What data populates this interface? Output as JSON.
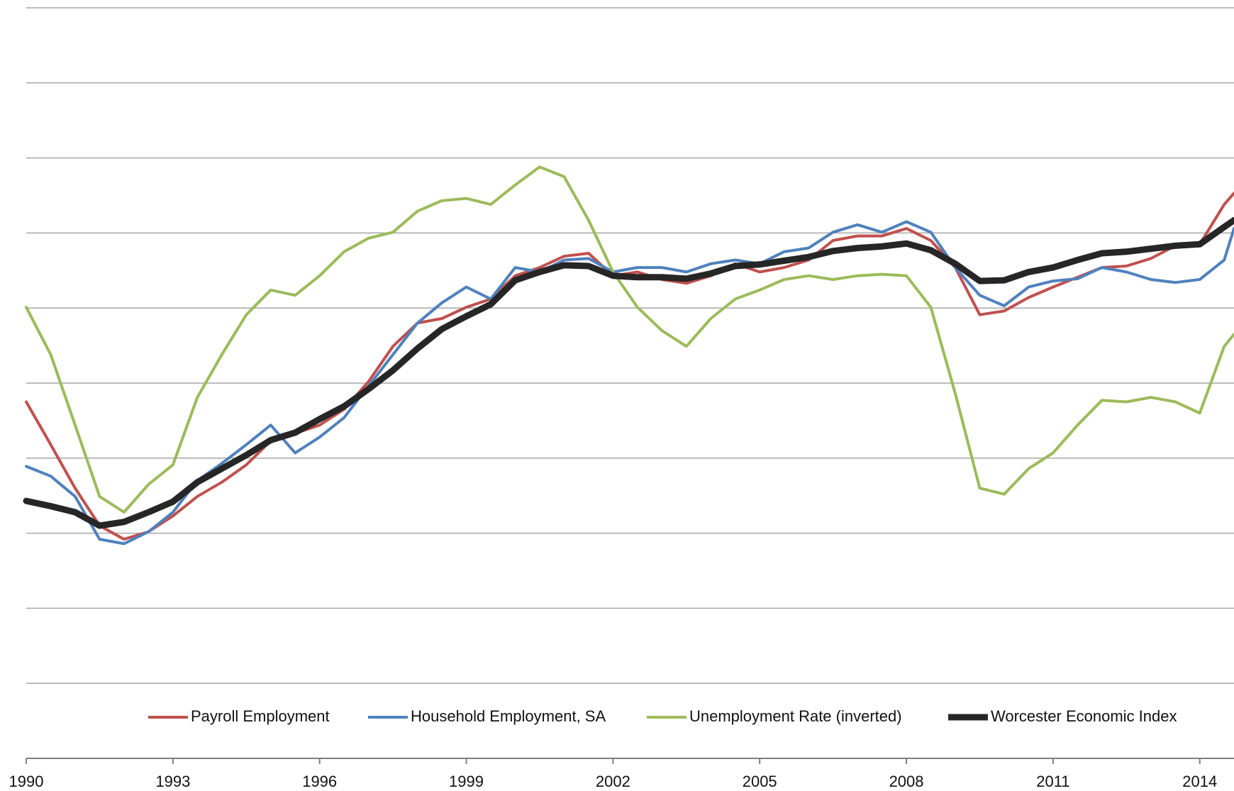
{
  "chart_data": {
    "type": "line",
    "x": [
      1990,
      1990.5,
      1991,
      1991.5,
      1992,
      1992.5,
      1993,
      1993.5,
      1994,
      1994.5,
      1995,
      1995.5,
      1996,
      1996.5,
      1997,
      1997.5,
      1998,
      1998.5,
      1999,
      1999.5,
      2000,
      2000.5,
      2001,
      2001.5,
      2002,
      2002.5,
      2003,
      2003.5,
      2004,
      2004.5,
      2005,
      2005.5,
      2006,
      2006.5,
      2007,
      2007.5,
      2008,
      2008.5,
      2009,
      2009.5,
      2010,
      2010.5,
      2011,
      2011.5,
      2012,
      2012.5,
      2013,
      2013.5,
      2014,
      2014.5,
      2014.7
    ],
    "series": [
      {
        "name": "Payroll Employment",
        "color": "#c0504d",
        "width": 4,
        "values": [
          4.75,
          4.18,
          3.6,
          3.1,
          2.92,
          3.02,
          3.23,
          3.49,
          3.68,
          3.91,
          4.23,
          4.33,
          4.44,
          4.65,
          5.02,
          5.49,
          5.8,
          5.86,
          6.01,
          6.12,
          6.43,
          6.54,
          6.69,
          6.73,
          6.43,
          6.48,
          6.38,
          6.33,
          6.43,
          6.59,
          6.48,
          6.54,
          6.64,
          6.9,
          6.96,
          6.96,
          7.06,
          6.9,
          6.54,
          5.91,
          5.96,
          6.14,
          6.28,
          6.41,
          6.54,
          6.56,
          6.66,
          6.83,
          6.85,
          7.38,
          7.53
        ]
      },
      {
        "name": "Household Employment, SA",
        "color": "#4f81bd",
        "width": 4,
        "values": [
          3.89,
          3.76,
          3.49,
          2.92,
          2.86,
          3.02,
          3.28,
          3.7,
          3.93,
          4.18,
          4.44,
          4.07,
          4.28,
          4.54,
          4.96,
          5.38,
          5.8,
          6.07,
          6.28,
          6.12,
          6.54,
          6.48,
          6.64,
          6.66,
          6.48,
          6.54,
          6.54,
          6.48,
          6.59,
          6.64,
          6.59,
          6.75,
          6.8,
          7.01,
          7.11,
          7.01,
          7.15,
          7.01,
          6.54,
          6.17,
          6.03,
          6.28,
          6.36,
          6.39,
          6.54,
          6.48,
          6.38,
          6.34,
          6.38,
          6.64,
          7.06
        ]
      },
      {
        "name": "Unemployment Rate (inverted)",
        "color": "#9bbb59",
        "width": 4,
        "values": [
          6.01,
          5.38,
          4.44,
          3.49,
          3.28,
          3.65,
          3.91,
          4.81,
          5.38,
          5.91,
          6.24,
          6.17,
          6.43,
          6.75,
          6.93,
          7.01,
          7.29,
          7.43,
          7.46,
          7.38,
          7.64,
          7.88,
          7.75,
          7.17,
          6.48,
          6.01,
          5.7,
          5.49,
          5.86,
          6.12,
          6.24,
          6.38,
          6.43,
          6.38,
          6.43,
          6.45,
          6.43,
          6.01,
          4.86,
          3.6,
          3.52,
          3.86,
          4.07,
          4.44,
          4.77,
          4.75,
          4.81,
          4.75,
          4.6,
          5.49,
          5.65
        ]
      },
      {
        "name": "Worcester Economic Index",
        "color": "#262626",
        "width": 9,
        "values": [
          3.43,
          3.36,
          3.28,
          3.1,
          3.15,
          3.28,
          3.42,
          3.68,
          3.86,
          4.04,
          4.24,
          4.34,
          4.52,
          4.69,
          4.92,
          5.17,
          5.46,
          5.72,
          5.89,
          6.05,
          6.37,
          6.48,
          6.57,
          6.56,
          6.43,
          6.41,
          6.41,
          6.39,
          6.46,
          6.56,
          6.58,
          6.63,
          6.68,
          6.76,
          6.8,
          6.82,
          6.86,
          6.77,
          6.59,
          6.36,
          6.37,
          6.48,
          6.54,
          6.64,
          6.73,
          6.75,
          6.79,
          6.83,
          6.85,
          7.08,
          7.17
        ]
      }
    ],
    "xlim": [
      1990,
      2014.7
    ],
    "xticks": [
      1990,
      1993,
      1996,
      1999,
      2002,
      2005,
      2008,
      2011,
      2014
    ],
    "ylim": [
      0,
      10
    ],
    "yticks": [
      1,
      2,
      3,
      4,
      5,
      6,
      7,
      8,
      9,
      10
    ],
    "grid": true,
    "legend": "bottom"
  }
}
